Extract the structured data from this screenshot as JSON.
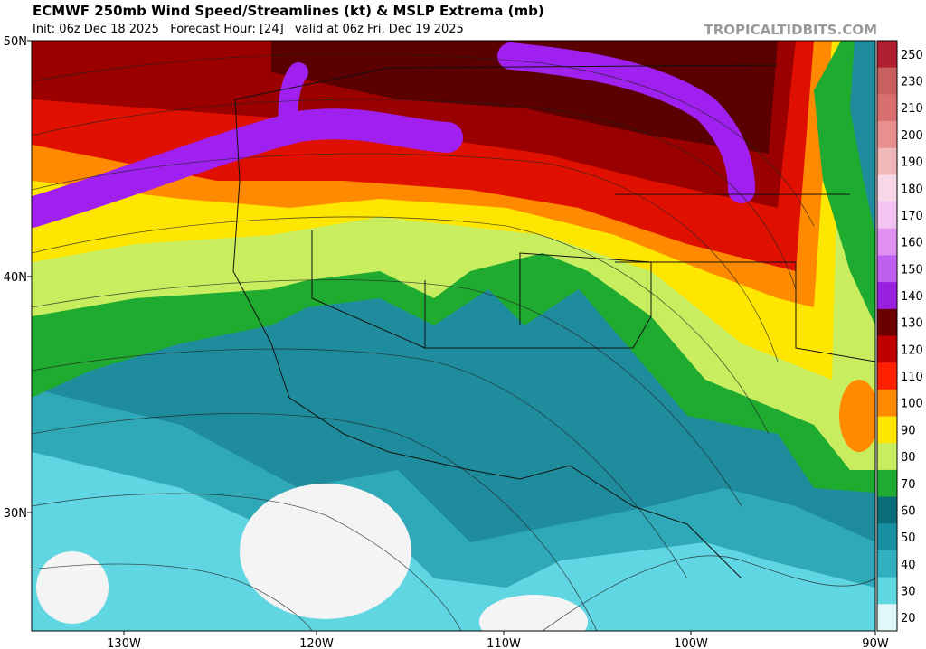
{
  "header": {
    "title": "ECMWF 250mb Wind Speed/Streamlines (kt) & MSLP Extrema (mb)",
    "subtitle": "Init: 06z Dec 18 2025   Forecast Hour: [24]   valid at 06z Fri, Dec 19 2025",
    "watermark": "TROPICALTIDBITS.COM"
  },
  "map": {
    "lat_labels": [
      "50N",
      "40N",
      "30N"
    ],
    "lon_labels": [
      "130W",
      "120W",
      "110W",
      "100W",
      "90W"
    ]
  },
  "colorbar": {
    "labels": [
      "250",
      "230",
      "210",
      "200",
      "190",
      "180",
      "170",
      "160",
      "150",
      "140",
      "130",
      "120",
      "110",
      "100",
      "90",
      "80",
      "70",
      "60",
      "50",
      "40",
      "30",
      "20"
    ]
  }
}
